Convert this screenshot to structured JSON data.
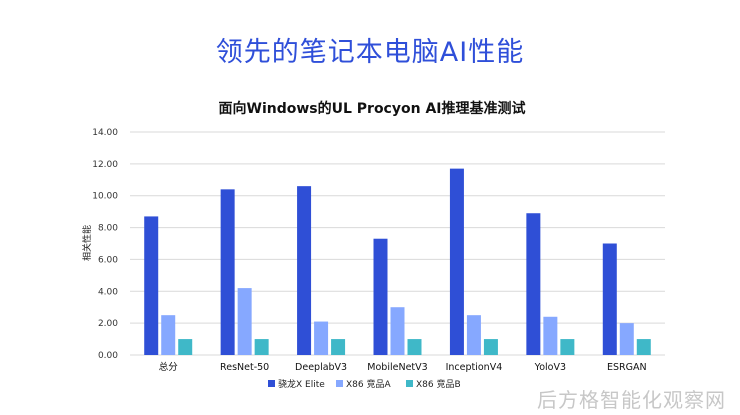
{
  "slide_title": "领先的笔记本电脑AI性能",
  "watermark": "后方格智能化观察网",
  "chart_data": {
    "type": "bar",
    "title": "面向Windows的UL Procyon AI推理基准测试",
    "xlabel": "",
    "ylabel": "相关性能",
    "ylim": [
      0,
      14
    ],
    "yticks": [
      "0.00",
      "2.00",
      "4.00",
      "6.00",
      "8.00",
      "10.00",
      "12.00",
      "14.00"
    ],
    "grid": true,
    "legend_position": "bottom",
    "categories": [
      "总分",
      "ResNet-50",
      "DeeplabV3",
      "MobileNetV3",
      "InceptionV4",
      "YoloV3",
      "ESRGAN"
    ],
    "series": [
      {
        "name": "骁龙X Elite",
        "color": "#2f4fd6",
        "values": [
          8.7,
          10.4,
          10.6,
          7.3,
          11.7,
          8.9,
          7.0
        ]
      },
      {
        "name": "X86 竞品A",
        "color": "#86a8ff",
        "values": [
          2.5,
          4.2,
          2.1,
          3.0,
          2.5,
          2.4,
          2.0
        ]
      },
      {
        "name": "X86 竞品B",
        "color": "#3fb8c8",
        "values": [
          1.0,
          1.0,
          1.0,
          1.0,
          1.0,
          1.0,
          1.0
        ]
      }
    ]
  }
}
